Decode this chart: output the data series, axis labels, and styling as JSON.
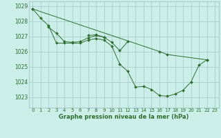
{
  "title": "Graphe pression niveau de la mer (hPa)",
  "bg_color": "#cceee8",
  "grid_color": "#aacccc",
  "line_color": "#2d6e2d",
  "xlim": [
    -0.5,
    23.5
  ],
  "ylim": [
    1022.3,
    1029.3
  ],
  "xtick_labels": [
    "0",
    "1",
    "2",
    "3",
    "4",
    "5",
    "6",
    "7",
    "8",
    "9",
    "10",
    "11",
    "12",
    "13",
    "14",
    "15",
    "16",
    "17",
    "18",
    "19",
    "20",
    "21",
    "22",
    "23"
  ],
  "yticks": [
    1023,
    1024,
    1025,
    1026,
    1027,
    1028,
    1029
  ],
  "series": [
    {
      "x": [
        0,
        1,
        2,
        3,
        4,
        5,
        6,
        7,
        8,
        9,
        10,
        11,
        12,
        13,
        14,
        15,
        16,
        17,
        18,
        19,
        20,
        21,
        22
      ],
      "y": [
        1028.8,
        1028.2,
        1027.7,
        1026.55,
        1026.55,
        1026.55,
        1026.55,
        1026.75,
        1026.85,
        1026.75,
        1026.35,
        1025.15,
        1024.7,
        1023.65,
        1023.7,
        1023.5,
        1023.1,
        1023.05,
        1023.2,
        1023.45,
        1024.0,
        1025.1,
        1025.45
      ]
    },
    {
      "x": [
        2,
        3,
        4,
        5,
        6,
        7,
        8,
        9,
        10,
        11,
        12
      ],
      "y": [
        1027.6,
        1027.2,
        1026.65,
        1026.6,
        1026.65,
        1026.9,
        1027.05,
        1026.95,
        1026.6,
        1026.05,
        1026.65
      ]
    },
    {
      "x": [
        7,
        8,
        9
      ],
      "y": [
        1027.05,
        1027.1,
        1026.95
      ]
    },
    {
      "x": [
        0,
        16,
        17,
        22
      ],
      "y": [
        1028.8,
        1026.0,
        1025.8,
        1025.45
      ]
    }
  ]
}
